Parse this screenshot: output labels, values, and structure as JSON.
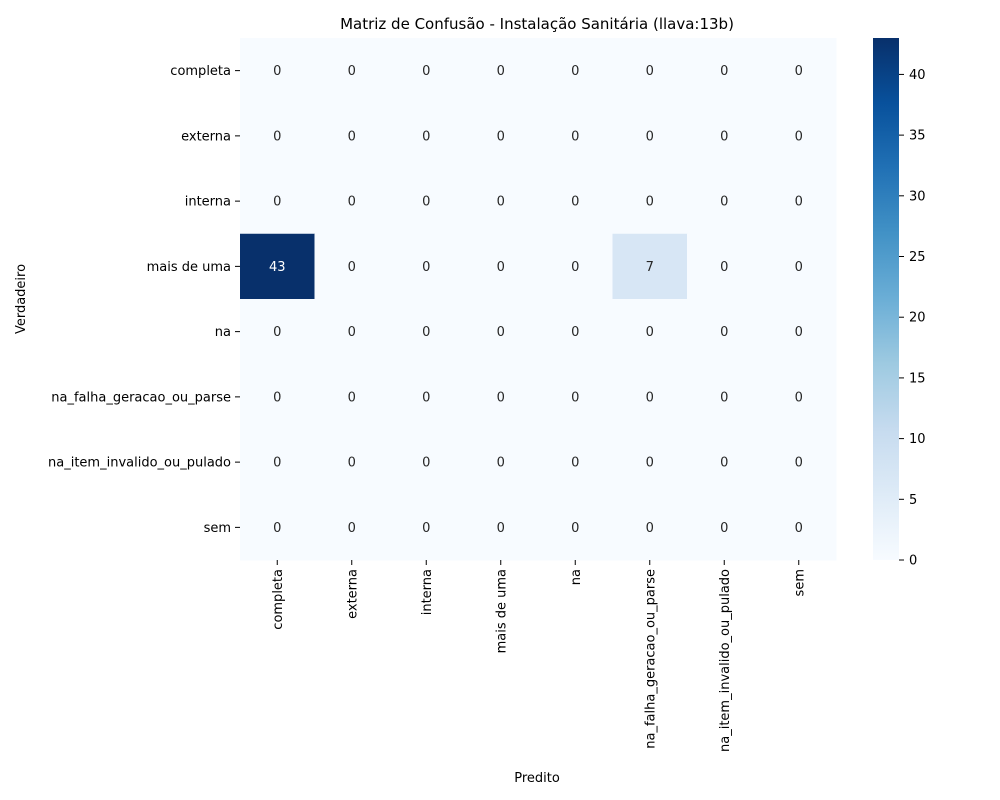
{
  "chart_data": {
    "type": "heatmap",
    "title": "Matriz de Confusão - Instalação Sanitária (llava:13b)",
    "xlabel": "Predito",
    "ylabel": "Verdadeiro",
    "x_categories": [
      "completa",
      "externa",
      "interna",
      "mais de uma",
      "na",
      "na_falha_geracao_ou_parse",
      "na_item_invalido_ou_pulado",
      "sem"
    ],
    "y_categories": [
      "completa",
      "externa",
      "interna",
      "mais de uma",
      "na",
      "na_falha_geracao_ou_parse",
      "na_item_invalido_ou_pulado",
      "sem"
    ],
    "values": [
      [
        0,
        0,
        0,
        0,
        0,
        0,
        0,
        0
      ],
      [
        0,
        0,
        0,
        0,
        0,
        0,
        0,
        0
      ],
      [
        0,
        0,
        0,
        0,
        0,
        0,
        0,
        0
      ],
      [
        43,
        0,
        0,
        0,
        0,
        7,
        0,
        0
      ],
      [
        0,
        0,
        0,
        0,
        0,
        0,
        0,
        0
      ],
      [
        0,
        0,
        0,
        0,
        0,
        0,
        0,
        0
      ],
      [
        0,
        0,
        0,
        0,
        0,
        0,
        0,
        0
      ],
      [
        0,
        0,
        0,
        0,
        0,
        0,
        0,
        0
      ]
    ],
    "colorbar": {
      "range": [
        0,
        43
      ],
      "ticks": [
        0,
        5,
        10,
        15,
        20,
        25,
        30,
        35,
        40
      ],
      "colormap": "Blues",
      "color_low": "#f7fbff",
      "color_high": "#08306b"
    }
  }
}
